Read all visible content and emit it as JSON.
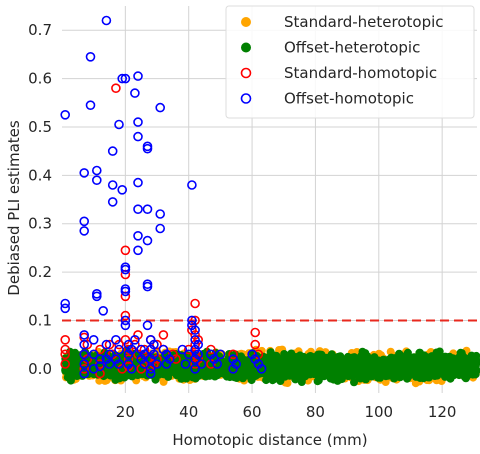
{
  "chart_data": {
    "type": "scatter",
    "xlabel": "Homotopic distance (mm)",
    "ylabel": "Debiased PLI estimates",
    "xlim": [
      0,
      131
    ],
    "ylim": [
      -0.05,
      0.75
    ],
    "xticks": [
      20,
      40,
      60,
      80,
      100,
      120
    ],
    "yticks": [
      0.0,
      0.1,
      0.2,
      0.3,
      0.4,
      0.5,
      0.6,
      0.7
    ],
    "grid": true,
    "legend_position": "top-right",
    "threshold_line": {
      "y": 0.1,
      "color": "#e8281e",
      "style": "dashed"
    },
    "series": [
      {
        "name": "Standard-heterotopic",
        "marker": "filled",
        "color": "#ffa500",
        "band": {
          "x_min": 1,
          "x_max": 131,
          "y_min": -0.035,
          "y_max": 0.045
        }
      },
      {
        "name": "Offset-heterotopic",
        "marker": "filled",
        "color": "#008000",
        "band": {
          "x_min": 1,
          "x_max": 131,
          "y_min": -0.03,
          "y_max": 0.04
        }
      },
      {
        "name": "Standard-homotopic",
        "marker": "open",
        "color": "#ff0000",
        "points": [
          [
            1,
            0.06
          ],
          [
            1,
            0.04
          ],
          [
            1,
            0.03
          ],
          [
            1,
            0.01
          ],
          [
            7,
            0.065
          ],
          [
            7,
            0.03
          ],
          [
            7,
            0.0
          ],
          [
            8,
            0.05
          ],
          [
            8,
            0.02
          ],
          [
            12,
            0.04
          ],
          [
            12,
            0.01
          ],
          [
            12,
            -0.01
          ],
          [
            15,
            0.05
          ],
          [
            16,
            0.03
          ],
          [
            17,
            0.58
          ],
          [
            17,
            0.02
          ],
          [
            18,
            0.05
          ],
          [
            19,
            0.0
          ],
          [
            20,
            0.245
          ],
          [
            20,
            0.195
          ],
          [
            20,
            0.15
          ],
          [
            20,
            0.11
          ],
          [
            20,
            0.06
          ],
          [
            21,
            0.04
          ],
          [
            21,
            0.02
          ],
          [
            21,
            0.005
          ],
          [
            23,
            0.05
          ],
          [
            24,
            0.03
          ],
          [
            24,
            0.07
          ],
          [
            25,
            0.0
          ],
          [
            26,
            0.04
          ],
          [
            27,
            0.02
          ],
          [
            28,
            0.06
          ],
          [
            28,
            0.04
          ],
          [
            28,
            0.005
          ],
          [
            29,
            0.01
          ],
          [
            30,
            0.05
          ],
          [
            30,
            0.02
          ],
          [
            32,
            0.07
          ],
          [
            32,
            0.04
          ],
          [
            35,
            0.03
          ],
          [
            36,
            0.02
          ],
          [
            40,
            0.04
          ],
          [
            41,
            0.08
          ],
          [
            42,
            0.135
          ],
          [
            42,
            0.1
          ],
          [
            42,
            0.07
          ],
          [
            42,
            0.05
          ],
          [
            42,
            0.03
          ],
          [
            42,
            0.01
          ],
          [
            43,
            0.06
          ],
          [
            43,
            0.02
          ],
          [
            47,
            0.04
          ],
          [
            47,
            0.01
          ],
          [
            54,
            0.03
          ],
          [
            54,
            0.0
          ],
          [
            61,
            0.075
          ],
          [
            61,
            0.05
          ],
          [
            62,
            0.03
          ],
          [
            62,
            0.01
          ]
        ]
      },
      {
        "name": "Offset-homotopic",
        "marker": "open",
        "color": "#0000ff",
        "points": [
          [
            1,
            0.525
          ],
          [
            1,
            0.135
          ],
          [
            1,
            0.125
          ],
          [
            7,
            0.405
          ],
          [
            7,
            0.305
          ],
          [
            7,
            0.285
          ],
          [
            7,
            0.07
          ],
          [
            7,
            0.05
          ],
          [
            7,
            0.03
          ],
          [
            7,
            0.01
          ],
          [
            7,
            -0.01
          ],
          [
            9,
            0.645
          ],
          [
            9,
            0.545
          ],
          [
            10,
            0.06
          ],
          [
            10,
            0.03
          ],
          [
            10,
            0.0
          ],
          [
            11,
            0.39
          ],
          [
            11,
            0.41
          ],
          [
            11,
            0.15
          ],
          [
            11,
            0.155
          ],
          [
            12,
            0.02
          ],
          [
            12,
            0.005
          ],
          [
            13,
            0.12
          ],
          [
            14,
            0.72
          ],
          [
            14,
            0.05
          ],
          [
            14,
            0.02
          ],
          [
            15,
            0.03
          ],
          [
            15,
            0.01
          ],
          [
            16,
            0.45
          ],
          [
            16,
            0.38
          ],
          [
            16,
            0.345
          ],
          [
            17,
            0.06
          ],
          [
            17,
            0.02
          ],
          [
            18,
            0.505
          ],
          [
            18,
            0.04
          ],
          [
            18,
            0.01
          ],
          [
            19,
            0.6
          ],
          [
            19,
            0.37
          ],
          [
            20,
            0.6
          ],
          [
            20,
            0.21
          ],
          [
            20,
            0.205
          ],
          [
            20,
            0.165
          ],
          [
            20,
            0.16
          ],
          [
            20,
            0.1
          ],
          [
            20,
            0.09
          ],
          [
            21,
            0.05
          ],
          [
            21,
            0.03
          ],
          [
            21,
            0.01
          ],
          [
            22,
            0.04
          ],
          [
            22,
            0.0
          ],
          [
            23,
            0.57
          ],
          [
            23,
            0.06
          ],
          [
            24,
            0.605
          ],
          [
            24,
            0.51
          ],
          [
            24,
            0.48
          ],
          [
            24,
            0.385
          ],
          [
            24,
            0.33
          ],
          [
            24,
            0.275
          ],
          [
            24,
            0.245
          ],
          [
            25,
            0.04
          ],
          [
            25,
            0.02
          ],
          [
            26,
            0.03
          ],
          [
            26,
            0.01
          ],
          [
            27,
            0.46
          ],
          [
            27,
            0.455
          ],
          [
            27,
            0.33
          ],
          [
            27,
            0.265
          ],
          [
            27,
            0.175
          ],
          [
            27,
            0.17
          ],
          [
            27,
            0.09
          ],
          [
            28,
            0.06
          ],
          [
            28,
            0.04
          ],
          [
            28,
            0.02
          ],
          [
            28,
            0.0
          ],
          [
            28,
            -0.01
          ],
          [
            29,
            0.05
          ],
          [
            29,
            0.03
          ],
          [
            30,
            0.01
          ],
          [
            31,
            0.32
          ],
          [
            31,
            0.29
          ],
          [
            31,
            0.54
          ],
          [
            32,
            0.04
          ],
          [
            33,
            0.03
          ],
          [
            33,
            0.01
          ],
          [
            34,
            0.02
          ],
          [
            38,
            0.04
          ],
          [
            39,
            0.01
          ],
          [
            40,
            0.03
          ],
          [
            41,
            0.38
          ],
          [
            41,
            0.1
          ],
          [
            41,
            0.09
          ],
          [
            42,
            0.08
          ],
          [
            42,
            0.06
          ],
          [
            42,
            0.04
          ],
          [
            42,
            0.02
          ],
          [
            42,
            0.0
          ],
          [
            43,
            0.05
          ],
          [
            43,
            0.03
          ],
          [
            44,
            0.01
          ],
          [
            47,
            0.03
          ],
          [
            48,
            0.02
          ],
          [
            49,
            0.01
          ],
          [
            50,
            0.03
          ],
          [
            54,
            0.02
          ],
          [
            54,
            0.0
          ],
          [
            55,
            0.01
          ],
          [
            60,
            0.03
          ],
          [
            61,
            0.02
          ],
          [
            62,
            0.01
          ],
          [
            63,
            0.0
          ]
        ]
      }
    ]
  }
}
